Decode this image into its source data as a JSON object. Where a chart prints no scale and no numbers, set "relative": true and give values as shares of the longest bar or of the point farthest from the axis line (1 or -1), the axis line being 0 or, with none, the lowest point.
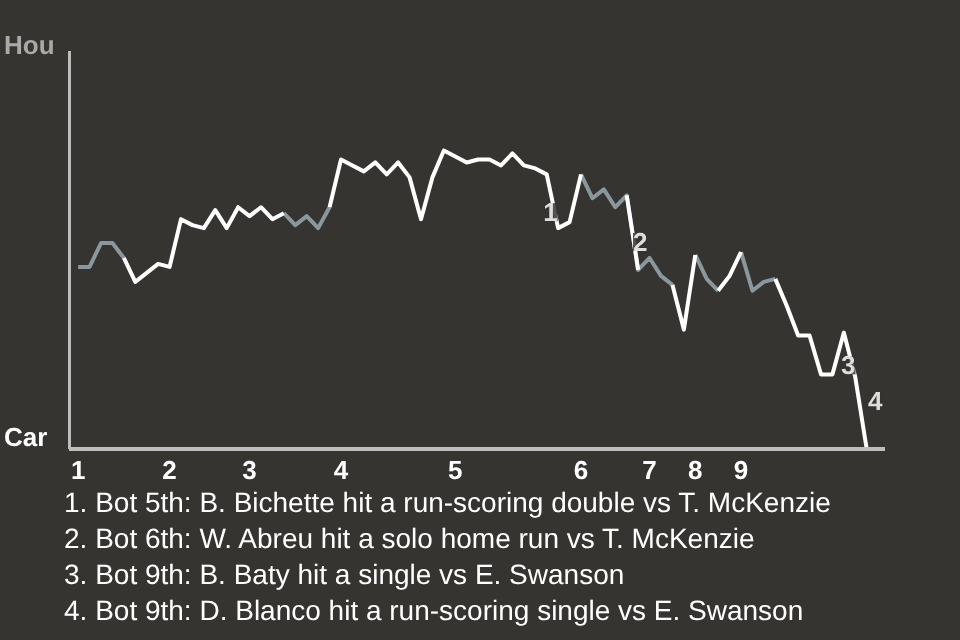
{
  "chart_data": {
    "type": "line",
    "relative": true,
    "categories": [
      "1",
      null,
      null,
      null,
      null,
      null,
      null,
      null,
      "2",
      null,
      null,
      null,
      null,
      null,
      null,
      "3",
      null,
      null,
      null,
      null,
      null,
      null,
      null,
      "4",
      null,
      null,
      null,
      null,
      null,
      null,
      null,
      null,
      null,
      "5",
      null,
      null,
      null,
      null,
      null,
      null,
      null,
      null,
      null,
      null,
      "6",
      null,
      null,
      null,
      null,
      null,
      "7",
      null,
      null,
      null,
      "8",
      null,
      null,
      null,
      "9",
      null,
      null,
      null,
      null,
      null,
      null,
      null,
      null,
      null,
      null,
      null
    ],
    "series": [
      {
        "color": "#8a979c",
        "values": [
          0.61,
          0.61,
          0.69,
          0.69,
          0.64,
          null,
          null,
          null,
          null,
          null,
          null,
          null,
          null,
          null,
          null,
          null,
          null,
          null,
          0.79,
          0.75,
          0.78,
          0.74,
          0.81,
          null,
          null,
          null,
          null,
          null,
          null,
          null,
          null,
          null,
          null,
          null,
          null,
          null,
          null,
          null,
          null,
          null,
          null,
          null,
          null,
          null,
          0.92,
          0.84,
          0.87,
          0.81,
          0.85,
          0.6,
          0.64,
          0.58,
          0.55,
          null,
          0.65,
          0.57,
          0.53,
          null,
          0.66,
          0.53,
          0.56,
          0.57,
          null,
          null,
          null,
          null,
          null,
          null,
          null,
          null
        ]
      },
      {
        "color": "#ffffff",
        "values": [
          null,
          null,
          null,
          null,
          0.64,
          0.56,
          0.59,
          0.62,
          0.61,
          0.77,
          0.75,
          0.74,
          0.8,
          0.74,
          0.81,
          0.78,
          0.81,
          0.77,
          0.79,
          null,
          null,
          null,
          0.81,
          0.97,
          0.95,
          0.93,
          0.96,
          0.92,
          0.96,
          0.91,
          0.77,
          0.91,
          1,
          0.98,
          0.96,
          0.97,
          0.97,
          0.95,
          0.99,
          0.95,
          0.94,
          0.92,
          0.74,
          0.76,
          0.92,
          null,
          null,
          null,
          0.85,
          0.6,
          null,
          null,
          0.55,
          0.4,
          0.65,
          null,
          0.53,
          0.58,
          0.66,
          null,
          null,
          0.57,
          0.48,
          0.38,
          0.38,
          0.25,
          0.25,
          0.39,
          0.24,
          0
        ]
      }
    ],
    "marker": "none",
    "line_style": "solid",
    "annotations": [
      "1",
      "2",
      "3",
      "4",
      "Hou",
      "Car",
      "1. Bot 5th: B. Bichette hit a run-scoring double vs T. McKenzie",
      "2. Bot 6th: W. Abreu hit a solo home run vs T. McKenzie",
      "3. Bot 9th: B. Baty hit a single vs E. Swanson",
      "4. Bot 9th: D. Blanco hit a run-scoring single vs E. Swanson"
    ]
  }
}
